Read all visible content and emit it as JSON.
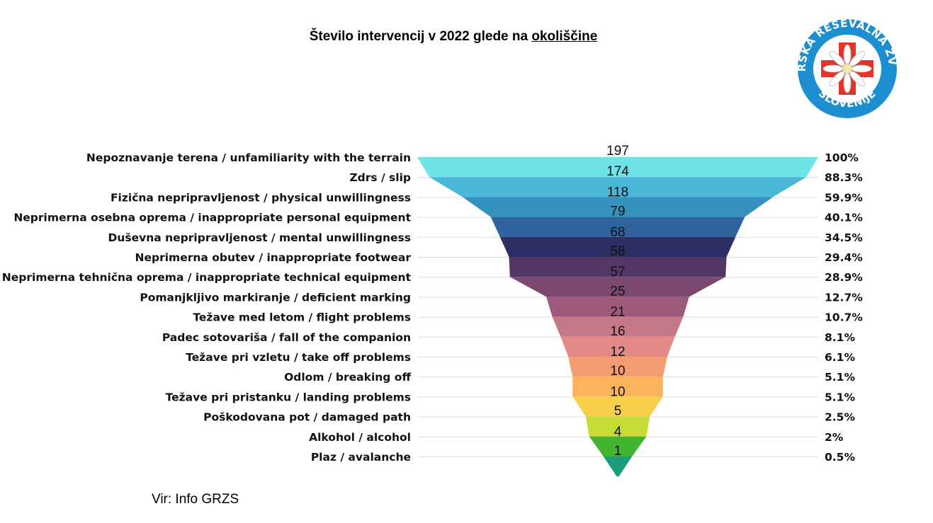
{
  "title": {
    "prefix": "Število intervencij v 2022 glede na",
    "underlined": "okoliščine"
  },
  "source": "Vir: Info GRZS",
  "logo": {
    "top_text": "GORSKA REŠEVALNA ZVEZA",
    "bottom_text": "SLOVENIJE",
    "ring_color": "#1d8fd0",
    "cross_color": "#e63329"
  },
  "chart_data": {
    "type": "funnel",
    "title": "Število intervencij v 2022 glede na okoliščine",
    "categories": [
      "Nepoznavanje terena / unfamiliarity with the terrain",
      "Zdrs / slip",
      "Fizična nepripravljenost / physical unwillingness",
      "Neprimerna osebna oprema / inappropriate personal equipment",
      "Duševna nepripravljenost / mental unwillingness",
      "Neprimerna obutev / inappropriate footwear",
      "Neprimerna tehnična oprema / inappropriate technical equipment",
      "Pomanjkljivo markiranje / deficient marking",
      "Težave med letom / flight problems",
      "Padec sotovariša / fall of the companion",
      "Težave pri vzletu / take off problems",
      "Odlom / breaking off",
      "Težave pri pristanku / landing problems",
      "Poškodovana pot / damaged path",
      "Alkohol / alcohol",
      "Plaz / avalanche"
    ],
    "values": [
      197,
      174,
      118,
      79,
      68,
      58,
      57,
      25,
      21,
      16,
      12,
      10,
      10,
      5,
      4,
      1
    ],
    "percent_labels": [
      "100%",
      "88.3%",
      "59.9%",
      "40.1%",
      "34.5%",
      "29.4%",
      "28.9%",
      "12.7%",
      "10.7%",
      "8.1%",
      "6.1%",
      "5.1%",
      "5.1%",
      "2.5%",
      "2%",
      "0.5%"
    ],
    "colors": [
      "#6ee4e6",
      "#4ab7d6",
      "#3591bd",
      "#2f63a0",
      "#2b2f63",
      "#533766",
      "#7c4870",
      "#9d5b79",
      "#c47a86",
      "#e4898a",
      "#f69c72",
      "#fbb35e",
      "#f7cf4a",
      "#c6dc35",
      "#43b42f",
      "#1a9c7d"
    ],
    "grid": true
  }
}
